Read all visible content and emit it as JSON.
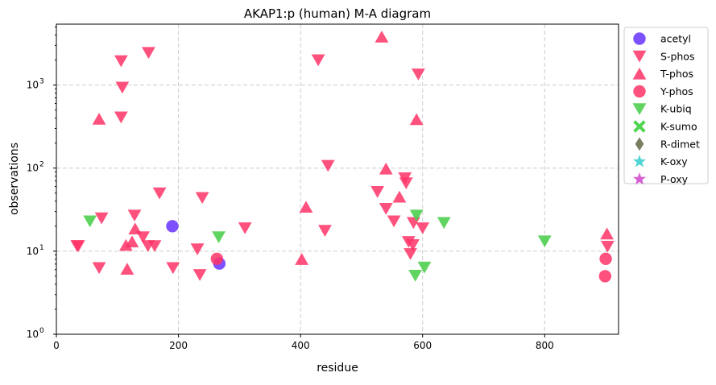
{
  "chart_data": {
    "type": "scatter",
    "title": "AKAP1:p (human) M-A diagram",
    "xlabel": "residue",
    "ylabel": "observations",
    "xlim": [
      0,
      921
    ],
    "ylim": [
      1,
      5400
    ],
    "yscale": "log",
    "grid": true,
    "legend_placement": "outside-right-top",
    "x_ticks": [
      0,
      200,
      400,
      600,
      800
    ],
    "y_ticks": [
      {
        "value": 1,
        "base": "10",
        "exp": "0"
      },
      {
        "value": 10,
        "base": "10",
        "exp": "1"
      },
      {
        "value": 100,
        "base": "10",
        "exp": "2"
      },
      {
        "value": 1000,
        "base": "10",
        "exp": "3"
      }
    ],
    "series": [
      {
        "name": "acetyl",
        "marker": "circle",
        "color": "#6633ff",
        "points": [
          [
            190,
            20
          ],
          [
            267,
            7.1
          ]
        ]
      },
      {
        "name": "S-phos",
        "marker": "triangle-down",
        "color": "#ff3366",
        "points": [
          [
            34,
            11.6
          ],
          [
            36,
            11.6
          ],
          [
            70,
            6.3
          ],
          [
            74,
            25
          ],
          [
            106,
            1950
          ],
          [
            108,
            935
          ],
          [
            106,
            410
          ],
          [
            128,
            27
          ],
          [
            142,
            14.8
          ],
          [
            150,
            11.6
          ],
          [
            151,
            2450
          ],
          [
            161,
            11.6
          ],
          [
            169,
            50
          ],
          [
            191,
            6.3
          ],
          [
            231,
            10.6
          ],
          [
            235,
            5.2
          ],
          [
            239,
            44
          ],
          [
            309,
            19
          ],
          [
            429,
            2000
          ],
          [
            440,
            17.7
          ],
          [
            445,
            107
          ],
          [
            526,
            52
          ],
          [
            540,
            32.5
          ],
          [
            553,
            23
          ],
          [
            571,
            76
          ],
          [
            573,
            66
          ],
          [
            577,
            13
          ],
          [
            580,
            9.3
          ],
          [
            584,
            11.9
          ],
          [
            585,
            22
          ],
          [
            593,
            1350
          ],
          [
            600,
            19
          ],
          [
            903,
            11.4
          ]
        ]
      },
      {
        "name": "T-phos",
        "marker": "triangle-up",
        "color": "#ff3366",
        "points": [
          [
            70,
            390
          ],
          [
            114,
            11.8
          ],
          [
            116,
            6.1
          ],
          [
            124,
            13
          ],
          [
            129,
            18.6
          ],
          [
            402,
            8
          ],
          [
            409,
            34
          ],
          [
            533,
            3800
          ],
          [
            540,
            98
          ],
          [
            562,
            45
          ],
          [
            590,
            385
          ],
          [
            902,
            16.2
          ]
        ]
      },
      {
        "name": "Y-phos",
        "marker": "circle",
        "color": "#ff3366",
        "points": [
          [
            263,
            8.1
          ],
          [
            900,
            8.1
          ],
          [
            899,
            5.0
          ]
        ]
      },
      {
        "name": "K-ubiq",
        "marker": "triangle-down",
        "color": "#44cc44",
        "points": [
          [
            55,
            23
          ],
          [
            266,
            14.8
          ],
          [
            588,
            5.1
          ],
          [
            590,
            27
          ],
          [
            603,
            6.4
          ],
          [
            635,
            22
          ],
          [
            800,
            13.2
          ]
        ]
      },
      {
        "name": "K-sumo",
        "marker": "x",
        "color": "#33cc33",
        "points": []
      },
      {
        "name": "R-dimet",
        "marker": "diamond",
        "color": "#666644",
        "points": []
      },
      {
        "name": "K-oxy",
        "marker": "star",
        "color": "#33cccc",
        "points": []
      },
      {
        "name": "P-oxy",
        "marker": "star",
        "color": "#cc44cc",
        "points": []
      }
    ]
  }
}
